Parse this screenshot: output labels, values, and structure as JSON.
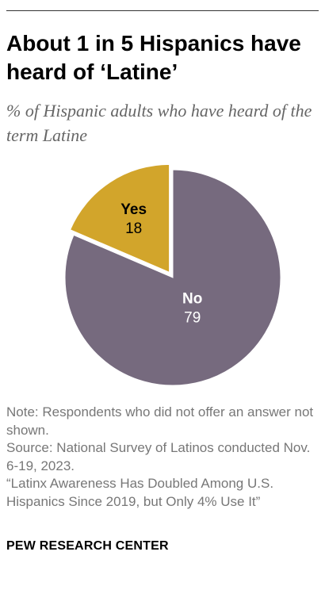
{
  "header": {
    "title": "About 1 in 5 Hispanics have heard of ‘Latine’",
    "subtitle": "% of Hispanic adults who have heard of the term Latine"
  },
  "chart_data": {
    "type": "pie",
    "title": "About 1 in 5 Hispanics have heard of ‘Latine’",
    "subtitle": "% of Hispanic adults who have heard of the term Latine",
    "slices": [
      {
        "label": "Yes",
        "value": 18,
        "color": "#d2a52b",
        "exploded": true
      },
      {
        "label": "No",
        "value": 79,
        "color": "#766a7e",
        "exploded": false
      }
    ]
  },
  "footer": {
    "note": "Note: Respondents who did not offer an answer not shown.",
    "source": "Source: National Survey of Latinos conducted Nov. 6-19, 2023.",
    "report": "“Latinx Awareness Has Doubled Among U.S. Hispanics Since 2019, but Only 4% Use It”",
    "brand": "PEW RESEARCH CENTER"
  }
}
